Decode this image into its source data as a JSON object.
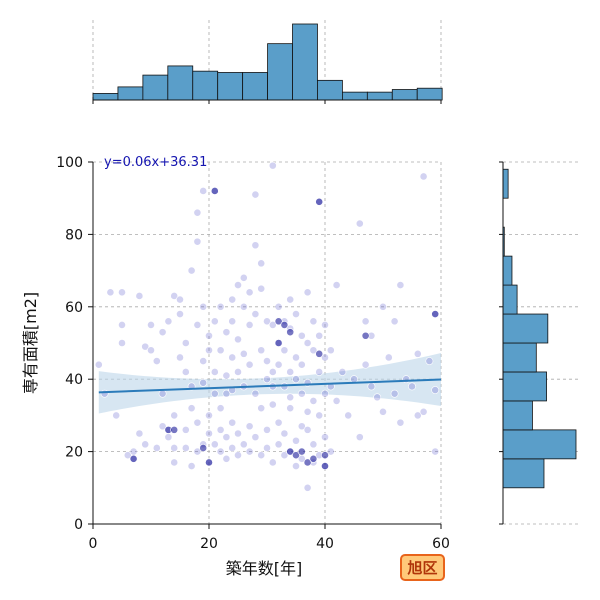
{
  "chart_data": {
    "type": "scatter",
    "xlabel": "築年数[年]",
    "ylabel": "専有面積[m2]",
    "xlim": [
      0,
      60
    ],
    "ylim": [
      0,
      100
    ],
    "x_ticks": [
      0,
      20,
      40,
      60
    ],
    "y_ticks": [
      0,
      20,
      40,
      60,
      80,
      100
    ],
    "grid": true,
    "regression": {
      "label": "y=0.06x+36.31",
      "slope": 0.06,
      "intercept": 36.31,
      "x_range": [
        1,
        60
      ]
    },
    "badge": "旭区",
    "colors": {
      "point": "#6a6acf",
      "point_dark": "#1a1a9a",
      "line": "#2b7bba",
      "band": "#bcd6ea",
      "hist": "#5a9ec9",
      "badge_fill": "#ffc97a",
      "badge_border": "#e8641b"
    },
    "marginal_x": {
      "bin_edges": [
        0,
        4.3,
        8.6,
        12.9,
        17.2,
        21.5,
        25.8,
        30.1,
        34.4,
        38.7,
        43,
        47.3,
        51.6,
        55.9,
        60.2
      ],
      "counts": [
        5,
        10,
        19,
        26,
        22,
        21,
        21,
        43,
        58,
        15,
        6,
        6,
        8,
        9
      ]
    },
    "marginal_y": {
      "bin_edges": [
        10,
        18,
        26,
        34,
        42,
        50,
        58,
        66,
        74,
        82,
        90,
        98
      ],
      "counts": [
        32,
        57,
        23,
        34,
        26,
        35,
        11,
        7,
        1,
        0,
        4
      ]
    },
    "points": [
      [
        1,
        44
      ],
      [
        2,
        36
      ],
      [
        3,
        64
      ],
      [
        4,
        30
      ],
      [
        5,
        64
      ],
      [
        5,
        55
      ],
      [
        5,
        50
      ],
      [
        6,
        19
      ],
      [
        7,
        18
      ],
      [
        7,
        20
      ],
      [
        8,
        63
      ],
      [
        8,
        25
      ],
      [
        9,
        49
      ],
      [
        9,
        22
      ],
      [
        10,
        48
      ],
      [
        10,
        55
      ],
      [
        11,
        21
      ],
      [
        11,
        45
      ],
      [
        12,
        53
      ],
      [
        12,
        27
      ],
      [
        12,
        36
      ],
      [
        13,
        56
      ],
      [
        13,
        26
      ],
      [
        13,
        24
      ],
      [
        14,
        63
      ],
      [
        14,
        21
      ],
      [
        14,
        30
      ],
      [
        14,
        17
      ],
      [
        15,
        58
      ],
      [
        15,
        62
      ],
      [
        15,
        46
      ],
      [
        16,
        50
      ],
      [
        16,
        42
      ],
      [
        16,
        26
      ],
      [
        16,
        21
      ],
      [
        17,
        70
      ],
      [
        17,
        38
      ],
      [
        17,
        32
      ],
      [
        17,
        16
      ],
      [
        18,
        78
      ],
      [
        18,
        86
      ],
      [
        18,
        55
      ],
      [
        18,
        20
      ],
      [
        18,
        28
      ],
      [
        19,
        92
      ],
      [
        19,
        45
      ],
      [
        19,
        39
      ],
      [
        19,
        22
      ],
      [
        19,
        60
      ],
      [
        20,
        52
      ],
      [
        20,
        48
      ],
      [
        20,
        30
      ],
      [
        20,
        25
      ],
      [
        20,
        17
      ],
      [
        21,
        92
      ],
      [
        21,
        56
      ],
      [
        21,
        42
      ],
      [
        21,
        22
      ],
      [
        21,
        36
      ],
      [
        22,
        60
      ],
      [
        22,
        48
      ],
      [
        22,
        32
      ],
      [
        22,
        26
      ],
      [
        22,
        20
      ],
      [
        23,
        53
      ],
      [
        23,
        41
      ],
      [
        23,
        36
      ],
      [
        23,
        24
      ],
      [
        23,
        18
      ],
      [
        24,
        62
      ],
      [
        24,
        56
      ],
      [
        24,
        46
      ],
      [
        24,
        28
      ],
      [
        24,
        21
      ],
      [
        25,
        66
      ],
      [
        25,
        51
      ],
      [
        25,
        42
      ],
      [
        25,
        25
      ],
      [
        25,
        19
      ],
      [
        26,
        68
      ],
      [
        26,
        60
      ],
      [
        26,
        47
      ],
      [
        26,
        38
      ],
      [
        26,
        22
      ],
      [
        27,
        64
      ],
      [
        27,
        55
      ],
      [
        27,
        44
      ],
      [
        27,
        27
      ],
      [
        27,
        20
      ],
      [
        28,
        77
      ],
      [
        28,
        91
      ],
      [
        28,
        58
      ],
      [
        28,
        36
      ],
      [
        28,
        24
      ],
      [
        29,
        72
      ],
      [
        29,
        65
      ],
      [
        29,
        48
      ],
      [
        29,
        32
      ],
      [
        29,
        19
      ],
      [
        30,
        56
      ],
      [
        30,
        45
      ],
      [
        30,
        40
      ],
      [
        30,
        26
      ],
      [
        30,
        21
      ],
      [
        31,
        99
      ],
      [
        31,
        55
      ],
      [
        31,
        42
      ],
      [
        31,
        33
      ],
      [
        31,
        17
      ],
      [
        32,
        60
      ],
      [
        32,
        50
      ],
      [
        32,
        44
      ],
      [
        32,
        28
      ],
      [
        32,
        22
      ],
      [
        33,
        56
      ],
      [
        33,
        48
      ],
      [
        33,
        38
      ],
      [
        33,
        25
      ],
      [
        33,
        19
      ],
      [
        34,
        62
      ],
      [
        34,
        54
      ],
      [
        34,
        42
      ],
      [
        34,
        32
      ],
      [
        34,
        20
      ],
      [
        35,
        58
      ],
      [
        35,
        46
      ],
      [
        35,
        40
      ],
      [
        35,
        23
      ],
      [
        35,
        16
      ],
      [
        36,
        52
      ],
      [
        36,
        44
      ],
      [
        36,
        36
      ],
      [
        36,
        27
      ],
      [
        36,
        18
      ],
      [
        37,
        64
      ],
      [
        37,
        50
      ],
      [
        37,
        39
      ],
      [
        37,
        26
      ],
      [
        37,
        10
      ],
      [
        38,
        56
      ],
      [
        38,
        48
      ],
      [
        38,
        34
      ],
      [
        38,
        22
      ],
      [
        38,
        17
      ],
      [
        39,
        89
      ],
      [
        39,
        52
      ],
      [
        39,
        42
      ],
      [
        39,
        30
      ],
      [
        39,
        19
      ],
      [
        40,
        55
      ],
      [
        40,
        46
      ],
      [
        40,
        36
      ],
      [
        40,
        24
      ],
      [
        40,
        16
      ],
      [
        41,
        48
      ],
      [
        41,
        38
      ],
      [
        41,
        20
      ],
      [
        42,
        66
      ],
      [
        42,
        34
      ],
      [
        43,
        42
      ],
      [
        44,
        30
      ],
      [
        45,
        40
      ],
      [
        46,
        83
      ],
      [
        46,
        24
      ],
      [
        47,
        56
      ],
      [
        47,
        44
      ],
      [
        48,
        52
      ],
      [
        48,
        38
      ],
      [
        49,
        35
      ],
      [
        50,
        60
      ],
      [
        50,
        31
      ],
      [
        51,
        46
      ],
      [
        52,
        56
      ],
      [
        52,
        36
      ],
      [
        53,
        66
      ],
      [
        53,
        28
      ],
      [
        54,
        40
      ],
      [
        55,
        38
      ],
      [
        56,
        47
      ],
      [
        56,
        30
      ],
      [
        57,
        96
      ],
      [
        57,
        31
      ],
      [
        58,
        45
      ],
      [
        59,
        58
      ],
      [
        59,
        37
      ],
      [
        59,
        20
      ],
      [
        24,
        37
      ],
      [
        31,
        38
      ],
      [
        34,
        35
      ],
      [
        37,
        31
      ]
    ],
    "dark_points": [
      [
        7,
        18
      ],
      [
        13,
        26
      ],
      [
        14,
        26
      ],
      [
        19,
        21
      ],
      [
        20,
        17
      ],
      [
        21,
        92
      ],
      [
        32,
        56
      ],
      [
        32,
        50
      ],
      [
        33,
        55
      ],
      [
        34,
        53
      ],
      [
        34,
        20
      ],
      [
        35,
        19
      ],
      [
        36,
        20
      ],
      [
        37,
        17
      ],
      [
        38,
        18
      ],
      [
        39,
        89
      ],
      [
        39,
        47
      ],
      [
        40,
        19
      ],
      [
        40,
        16
      ],
      [
        47,
        52
      ],
      [
        59,
        58
      ]
    ]
  }
}
